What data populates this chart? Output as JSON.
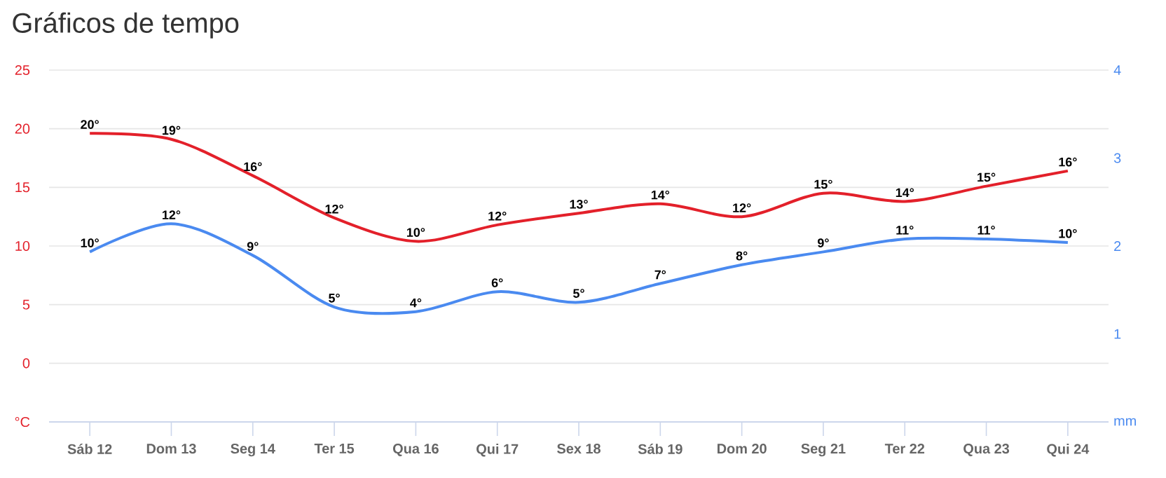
{
  "chart_data": {
    "type": "line",
    "title": "Gráficos de tempo",
    "categories": [
      "Sáb 12",
      "Dom 13",
      "Seg 14",
      "Ter 15",
      "Qua 16",
      "Qui 17",
      "Sex 18",
      "Sáb 19",
      "Dom 20",
      "Seg 21",
      "Ter 22",
      "Qua 23",
      "Qui 24"
    ],
    "series": [
      {
        "color": "#e3202a",
        "values": [
          19.6,
          19.1,
          16.0,
          12.4,
          10.4,
          11.8,
          12.8,
          13.6,
          12.5,
          14.5,
          13.8,
          15.1,
          16.4
        ],
        "value_labels": [
          "20°",
          "19°",
          "16°",
          "12°",
          "10°",
          "12°",
          "13°",
          "14°",
          "12°",
          "15°",
          "14°",
          "15°",
          "16°"
        ]
      },
      {
        "color": "#4a8af0",
        "values": [
          9.5,
          11.9,
          9.2,
          4.8,
          4.4,
          6.1,
          5.2,
          6.8,
          8.4,
          9.5,
          10.6,
          10.6,
          10.3
        ],
        "value_labels": [
          "10°",
          "12°",
          "9°",
          "5°",
          "4°",
          "6°",
          "5°",
          "7°",
          "8°",
          "9°",
          "11°",
          "11°",
          "10°"
        ]
      }
    ],
    "ylim": [
      -5,
      25
    ],
    "yticks": [
      {
        "value": -5,
        "label": "°C"
      },
      0,
      5,
      10,
      15,
      20,
      25
    ],
    "y2lim": [
      0,
      4
    ],
    "y2ticks": [
      {
        "value": 0,
        "label": "mm"
      },
      1,
      2,
      3,
      4
    ],
    "grid": "y",
    "marker": "none",
    "line_style": "solid"
  }
}
